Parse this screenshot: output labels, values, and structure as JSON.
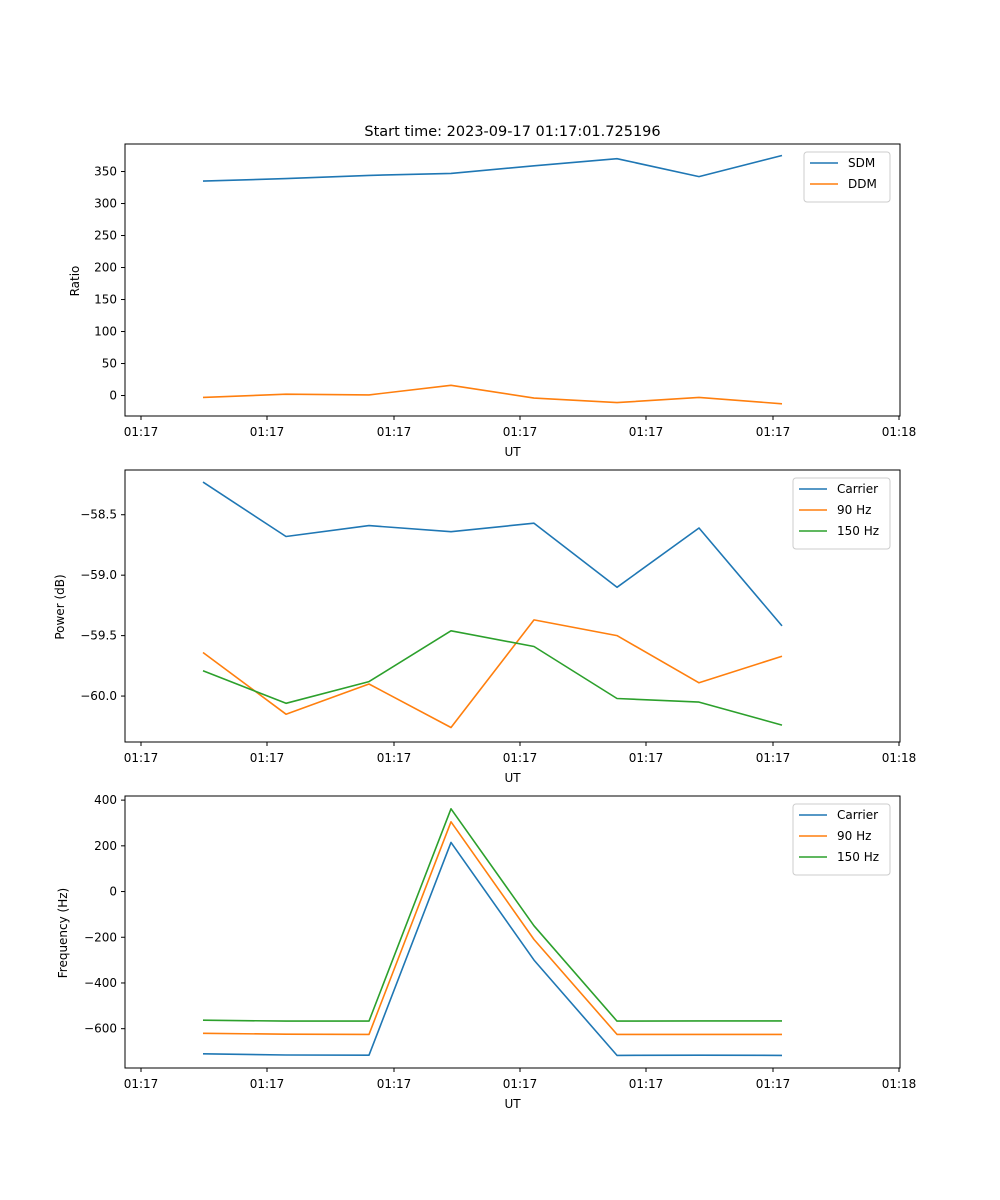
{
  "chart_data": [
    {
      "type": "line",
      "title": "Start time: 2023-09-17 01:17:01.725196",
      "xlabel": "UT",
      "ylabel": "Ratio",
      "x_tick_labels": [
        "01:17",
        "01:17",
        "01:17",
        "01:17",
        "01:17",
        "01:17",
        "01:17"
      ],
      "x_tick_last": "01:18",
      "yticks": [
        0,
        50,
        100,
        150,
        200,
        250,
        300,
        350
      ],
      "ylim": [
        -32,
        393
      ],
      "legend_position": "top-right",
      "series": [
        {
          "name": "SDM",
          "color": "#1f77b4",
          "values": [
            335,
            339,
            344,
            347,
            359,
            370,
            342,
            375
          ]
        },
        {
          "name": "DDM",
          "color": "#ff7f0e",
          "values": [
            -3,
            2,
            1,
            16,
            -4,
            -11,
            -3,
            -13
          ]
        }
      ]
    },
    {
      "type": "line",
      "title": "",
      "xlabel": "UT",
      "ylabel": "Power (dB)",
      "x_tick_labels": [
        "01:17",
        "01:17",
        "01:17",
        "01:17",
        "01:17",
        "01:17",
        "01:17"
      ],
      "x_tick_last": "01:18",
      "yticks": [
        -58.5,
        -59.0,
        -59.5,
        -60.0
      ],
      "ytick_labels": [
        "−58.5",
        "−59.0",
        "−59.5",
        "−60.0"
      ],
      "ylim": [
        -60.38,
        -58.13
      ],
      "legend_position": "top-right",
      "series": [
        {
          "name": "Carrier",
          "color": "#1f77b4",
          "values": [
            -58.23,
            -58.68,
            -58.59,
            -58.64,
            -58.57,
            -59.1,
            -58.61,
            -59.42
          ]
        },
        {
          "name": "90 Hz",
          "color": "#ff7f0e",
          "values": [
            -59.64,
            -60.15,
            -59.9,
            -60.26,
            -59.37,
            -59.5,
            -59.89,
            -59.67
          ]
        },
        {
          "name": "150 Hz",
          "color": "#2ca02c",
          "values": [
            -59.79,
            -60.06,
            -59.88,
            -59.46,
            -59.59,
            -60.02,
            -60.05,
            -60.24
          ]
        }
      ]
    },
    {
      "type": "line",
      "title": "",
      "xlabel": "UT",
      "ylabel": "Frequency (Hz)",
      "x_tick_labels": [
        "01:17",
        "01:17",
        "01:17",
        "01:17",
        "01:17",
        "01:17",
        "01:17"
      ],
      "x_tick_last": "01:18",
      "yticks": [
        400,
        200,
        0,
        -200,
        -400,
        -600
      ],
      "ytick_labels": [
        "400",
        "200",
        "0",
        "−200",
        "−400",
        "−600"
      ],
      "ylim": [
        -772,
        418
      ],
      "legend_position": "top-right",
      "series": [
        {
          "name": "Carrier",
          "color": "#1f77b4",
          "values": [
            -710,
            -715,
            -716,
            215,
            -300,
            -717,
            -716,
            -717
          ]
        },
        {
          "name": "90 Hz",
          "color": "#ff7f0e",
          "values": [
            -620,
            -624,
            -625,
            305,
            -210,
            -625,
            -625,
            -625
          ]
        },
        {
          "name": "150 Hz",
          "color": "#2ca02c",
          "values": [
            -563,
            -567,
            -567,
            362,
            -150,
            -567,
            -566,
            -566
          ]
        }
      ]
    }
  ]
}
